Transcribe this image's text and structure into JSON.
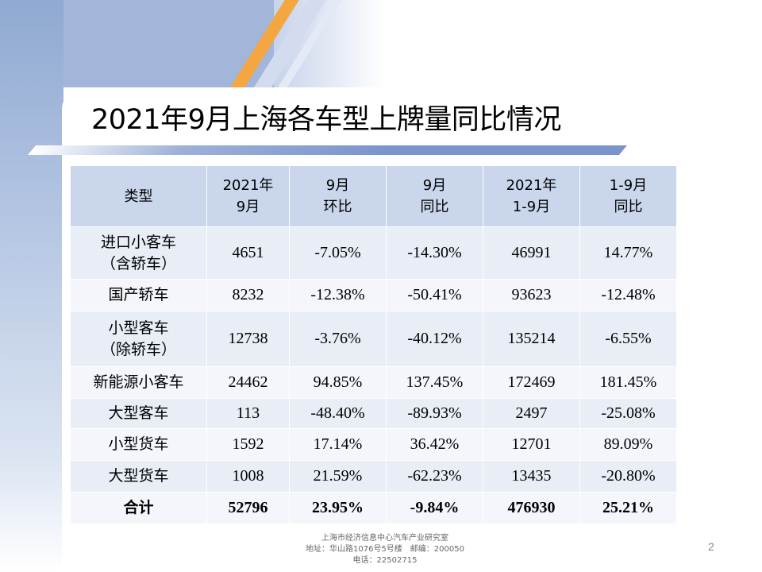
{
  "slide": {
    "title": "2021年9月上海各车型上牌量同比情况",
    "page_number": "2"
  },
  "table": {
    "headers": [
      [
        "类型"
      ],
      [
        "2021年",
        "9月"
      ],
      [
        "9月",
        "环比"
      ],
      [
        "9月",
        "同比"
      ],
      [
        "2021年",
        "1-9月"
      ],
      [
        "1-9月",
        "同比"
      ]
    ],
    "rows": [
      {
        "category": [
          "进口小客车",
          "（含轿车）"
        ],
        "values": [
          "4651",
          "-7.05%",
          "-14.30%",
          "46991",
          "14.77%"
        ]
      },
      {
        "category": [
          "国产轿车"
        ],
        "values": [
          "8232",
          "-12.38%",
          "-50.41%",
          "93623",
          "-12.48%"
        ]
      },
      {
        "category": [
          "小型客车",
          "（除轿车）"
        ],
        "values": [
          "12738",
          "-3.76%",
          "-40.12%",
          "135214",
          "-6.55%"
        ]
      },
      {
        "category": [
          "新能源小客车"
        ],
        "values": [
          "24462",
          "94.85%",
          "137.45%",
          "172469",
          "181.45%"
        ]
      },
      {
        "category": [
          "大型客车"
        ],
        "values": [
          "113",
          "-48.40%",
          "-89.93%",
          "2497",
          "-25.08%"
        ]
      },
      {
        "category": [
          "小型货车"
        ],
        "values": [
          "1592",
          "17.14%",
          "36.42%",
          "12701",
          "89.09%"
        ]
      },
      {
        "category": [
          "大型货车"
        ],
        "values": [
          "1008",
          "21.59%",
          "-62.23%",
          "13435",
          "-20.80%"
        ]
      },
      {
        "category": [
          "合计"
        ],
        "values": [
          "52796",
          "23.95%",
          "-9.84%",
          "476930",
          "25.21%"
        ]
      }
    ]
  },
  "footer": {
    "org": "上海市经济信息中心汽车产业研究室",
    "address": "地址：华山路1076号5号楼　邮编：200050",
    "phone": "电话：22502715"
  },
  "colors": {
    "header_fill": "#c9d6ec",
    "row_fill_a": "#e8edf6",
    "row_fill_b": "#f4f6fb",
    "accent_orange": "#f4a640",
    "accent_blue": "#7a95cc"
  }
}
